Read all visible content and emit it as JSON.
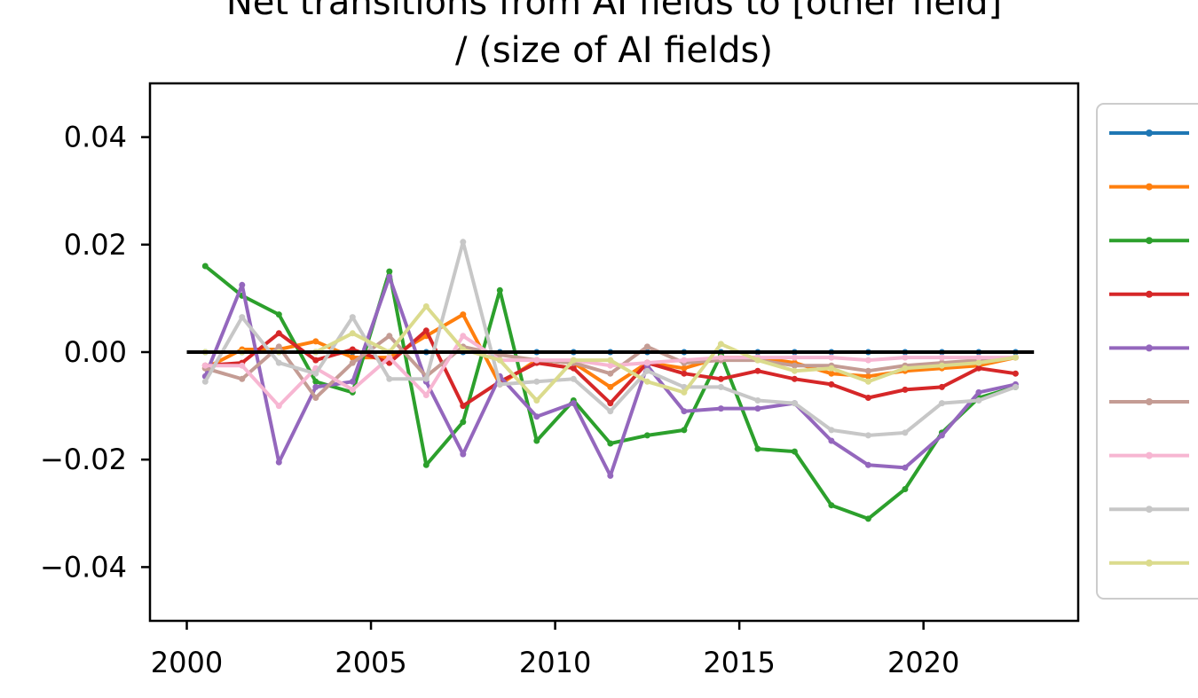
{
  "chart_data": {
    "type": "line",
    "title_line1": "Net transitions from AI fields to [other field]",
    "title_line2": "/ (size of AI fields)",
    "xlim": [
      1999,
      2024.2
    ],
    "ylim": [
      -0.05,
      0.05
    ],
    "xticks": [
      2000,
      2005,
      2010,
      2015,
      2020
    ],
    "yticks": [
      0.04,
      0.02,
      0.0,
      -0.02,
      -0.04
    ],
    "ytick_labels": [
      "0.04",
      "0.02",
      "0.00",
      "−0.02",
      "−0.04"
    ],
    "xtick_labels": [
      "2000",
      "2005",
      "2010",
      "2015",
      "2020"
    ],
    "baseline": {
      "x": [
        2000,
        2023
      ],
      "y": [
        0,
        0
      ],
      "color": "#000000"
    },
    "x": [
      2000.5,
      2001.5,
      2002.5,
      2003.5,
      2004.5,
      2005.5,
      2006.5,
      2007.5,
      2008.5,
      2009.5,
      2010.5,
      2011.5,
      2012.5,
      2013.5,
      2014.5,
      2015.5,
      2016.5,
      2017.5,
      2018.5,
      2019.5,
      2020.5,
      2021.5,
      2022.5
    ],
    "legend_position": "right (labels cropped)",
    "series": [
      {
        "color": "#1f77b4",
        "values": [
          0,
          0,
          0,
          0,
          0,
          0,
          0,
          0,
          0,
          0,
          0,
          0,
          0,
          0,
          0,
          0,
          0,
          0,
          0,
          0,
          0,
          0,
          0
        ]
      },
      {
        "color": "#ff7f0e",
        "values": [
          -0.003,
          0.0005,
          0.0005,
          0.002,
          -0.001,
          -0.001,
          0.003,
          0.007,
          -0.006,
          -0.0015,
          -0.002,
          -0.0065,
          -0.002,
          -0.003,
          -0.001,
          -0.001,
          -0.002,
          -0.004,
          -0.0045,
          -0.0035,
          -0.003,
          -0.0025,
          -0.001
        ]
      },
      {
        "color": "#2ca02c",
        "values": [
          0.016,
          0.0105,
          0.007,
          -0.0055,
          -0.0075,
          0.015,
          -0.021,
          -0.013,
          0.0115,
          -0.0165,
          -0.009,
          -0.017,
          -0.0155,
          -0.0145,
          -0.0005,
          -0.018,
          -0.0185,
          -0.0285,
          -0.031,
          -0.0255,
          -0.015,
          -0.0085,
          -0.0065
        ]
      },
      {
        "color": "#d62728",
        "values": [
          -0.0025,
          -0.002,
          0.0035,
          -0.0015,
          0.0005,
          -0.002,
          0.004,
          -0.01,
          -0.0055,
          -0.002,
          -0.003,
          -0.0095,
          -0.002,
          -0.004,
          -0.005,
          -0.0035,
          -0.005,
          -0.006,
          -0.0085,
          -0.007,
          -0.0065,
          -0.003,
          -0.004
        ]
      },
      {
        "color": "#9467bd",
        "values": [
          -0.0045,
          0.0125,
          -0.0205,
          -0.0065,
          -0.0055,
          0.014,
          -0.0055,
          -0.019,
          -0.0045,
          -0.012,
          -0.0095,
          -0.023,
          -0.0025,
          -0.011,
          -0.0105,
          -0.0105,
          -0.0095,
          -0.0165,
          -0.021,
          -0.0215,
          -0.0155,
          -0.0075,
          -0.006
        ]
      },
      {
        "color": "#c49c94",
        "values": [
          -0.003,
          -0.005,
          0.001,
          -0.0085,
          -0.002,
          0.003,
          -0.0045,
          0.001,
          -0.0005,
          -0.0015,
          -0.002,
          -0.004,
          0.001,
          -0.002,
          -0.0015,
          -0.0015,
          -0.0025,
          -0.0025,
          -0.0035,
          -0.0025,
          -0.002,
          -0.0015,
          -0.001
        ]
      },
      {
        "color": "#f7b6d2",
        "values": [
          -0.0025,
          -0.0025,
          -0.01,
          -0.003,
          -0.007,
          -0.001,
          -0.008,
          0.003,
          -0.0015,
          -0.0015,
          -0.0015,
          -0.0025,
          -0.002,
          -0.0015,
          -0.001,
          -0.001,
          -0.001,
          -0.001,
          -0.0015,
          -0.001,
          -0.001,
          -0.001,
          -0.001
        ]
      },
      {
        "color": "#c7c7c7",
        "values": [
          -0.0055,
          0.0065,
          -0.002,
          -0.004,
          0.0065,
          -0.005,
          -0.005,
          0.0205,
          -0.006,
          -0.0055,
          -0.005,
          -0.011,
          -0.0035,
          -0.0065,
          -0.0065,
          -0.009,
          -0.0095,
          -0.0145,
          -0.0155,
          -0.015,
          -0.0095,
          -0.009,
          -0.0065
        ]
      },
      {
        "color": "#dbdb8d",
        "values": [
          0.0,
          0.0,
          0.0,
          0.0,
          0.0035,
          0.0,
          0.0085,
          0.0005,
          -0.0015,
          -0.009,
          -0.0015,
          -0.0015,
          -0.0055,
          -0.0075,
          0.0015,
          -0.0015,
          -0.0035,
          -0.003,
          -0.0055,
          -0.003,
          -0.0025,
          -0.002,
          -0.001
        ]
      }
    ]
  }
}
